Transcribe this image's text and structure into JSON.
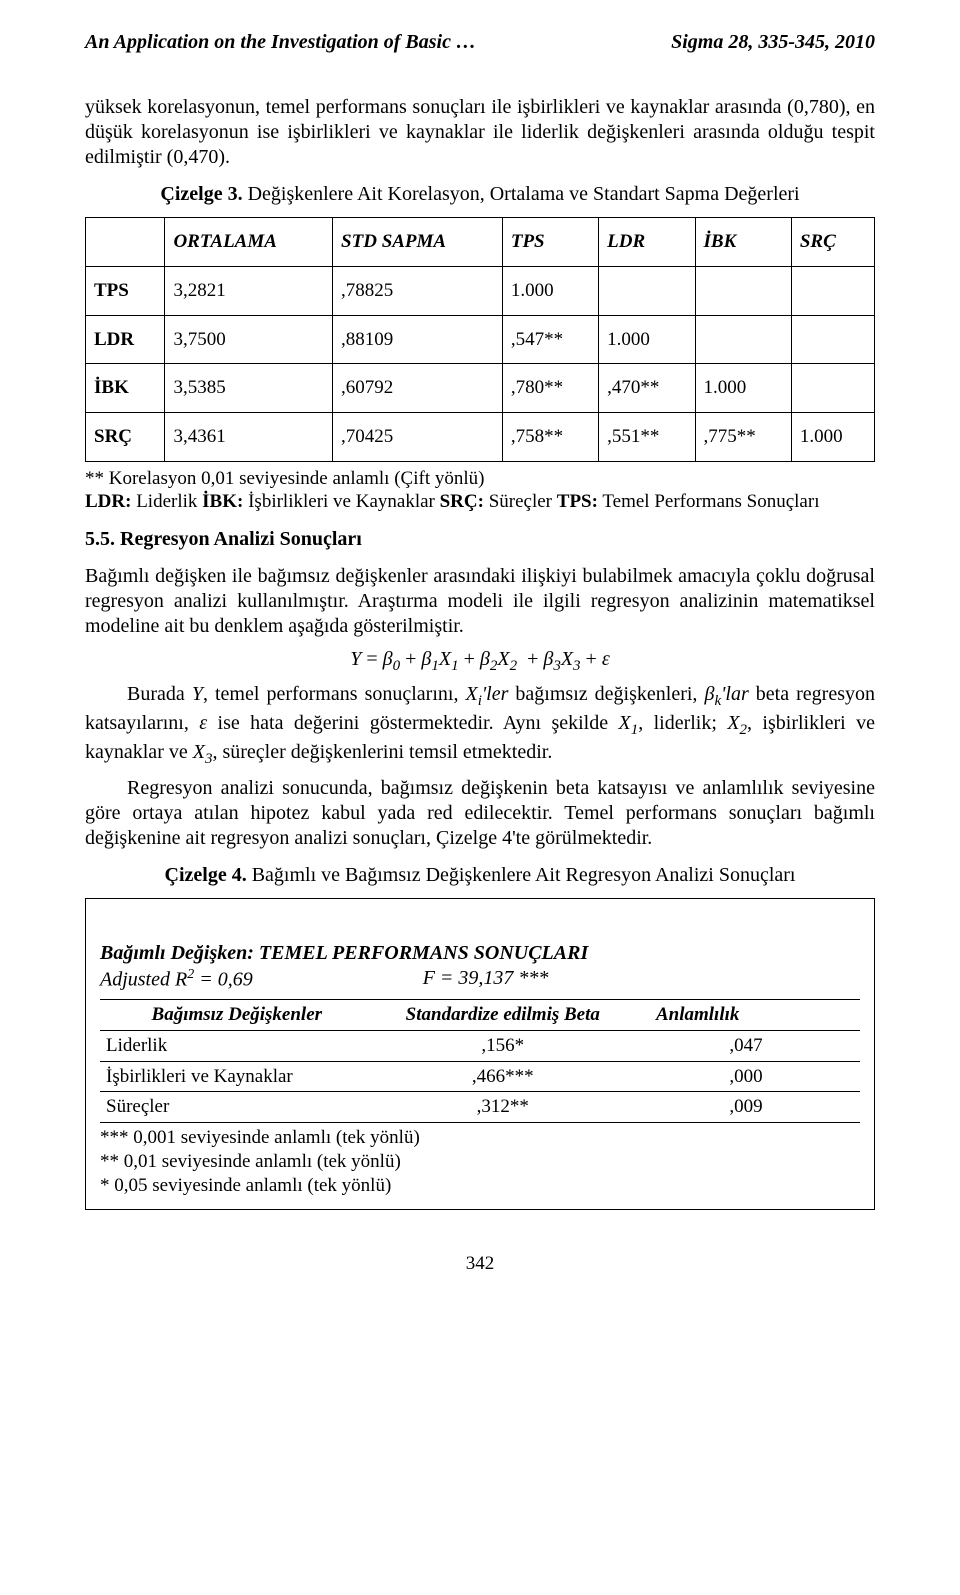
{
  "header": {
    "left": "An Application on the Investigation of Basic …",
    "right": "Sigma 28, 335-345, 2010"
  },
  "para1": "yüksek korelasyonun, temel performans sonuçları ile işbirlikleri ve kaynaklar arasında (0,780), en düşük korelasyonun ise işbirlikleri ve kaynaklar ile liderlik değişkenleri arasında olduğu tespit edilmiştir (0,470).",
  "caption3_bold": "Çizelge 3.",
  "caption3_rest": " Değişkenlere Ait Korelasyon, Ortalama ve Standart Sapma Değerleri",
  "corr_table": {
    "columns": [
      "",
      "ORTALAMA",
      "STD SAPMA",
      "TPS",
      "LDR",
      "İBK",
      "SRÇ"
    ],
    "rows": [
      [
        "TPS",
        "3,2821",
        ",78825",
        "1.000",
        "",
        "",
        ""
      ],
      [
        "LDR",
        "3,7500",
        ",88109",
        ",547**",
        "1.000",
        "",
        ""
      ],
      [
        "İBK",
        "3,5385",
        ",60792",
        ",780**",
        ",470**",
        "1.000",
        ""
      ],
      [
        "SRÇ",
        "3,4361",
        ",70425",
        ",758**",
        ",551**",
        ",775**",
        "1.000"
      ]
    ]
  },
  "note_corr_1": "** Korelasyon 0,01 seviyesinde anlamlı (Çift yönlü)",
  "note_corr_2": "LDR: Liderlik İBK: İşbirlikleri ve Kaynaklar SRÇ: Süreçler TPS: Temel Performans Sonuçları",
  "section_55": "5.5. Regresyon Analizi Sonuçları",
  "para2": "Bağımlı değişken ile bağımsız değişkenler arasındaki ilişkiyi bulabilmek amacıyla çoklu doğrusal regresyon analizi kullanılmıştır. Araştırma modeli ile ilgili regresyon analizinin matematiksel modeline ait bu denklem aşağıda gösterilmiştir.",
  "equation_parts": {
    "Y": "Y",
    "eq": " = ",
    "b0": "β",
    "s0": "0",
    "plus": " + ",
    "b1": "β",
    "s1": "1",
    "x1": "X",
    "sx1": "1",
    "b2": "β",
    "s2": "2",
    "x2": "X",
    "sx2": "2",
    "b3": "β",
    "s3": "3",
    "x3": "X",
    "sx3": "3",
    "eps": "ε"
  },
  "para3a": "Burada ",
  "para3_Y": "Y",
  "para3b": ", temel performans sonuçlarını, ",
  "para3_Xi": "X",
  "para3_Xi_sub": "i",
  "para3_ler": "'ler",
  "para3c": " bağımsız değişkenleri, ",
  "para3_bk": "β",
  "para3_bk_sub": "k",
  "para3_lar": "'lar",
  "para3d": " beta regresyon katsayılarını, ",
  "para3_eps": "ε",
  "para3e": "  ise hata değerini göstermektedir. Aynı şekilde ",
  "para3_X1": "X",
  "para3_X1s": "1",
  "para3f": ", liderlik; ",
  "para3_X2": "X",
  "para3_X2s": "2",
  "para3g": ", işbirlikleri ve kaynaklar ve ",
  "para3_X3": "X",
  "para3_X3s": "3",
  "para3h": ", süreçler değişkenlerini temsil etmektedir.",
  "para4": "Regresyon analizi sonucunda, bağımsız değişkenin beta katsayısı ve anlamlılık seviyesine göre ortaya atılan hipotez kabul yada red edilecektir. Temel performans sonuçları bağımlı değişkenine ait regresyon analizi sonuçları, Çizelge 4'te görülmektedir.",
  "caption4_bold": "Çizelge 4.",
  "caption4_rest": " Bağımlı ve Bağımsız Değişkenlere Ait Regresyon Analizi Sonuçları",
  "reg": {
    "dep_label": "Bağımlı Değişken: TEMEL PERFORMANS SONUÇLARI",
    "adj_r2_label": "Adjusted R",
    "adj_r2_sup": "2",
    "adj_r2_val": " = 0,69",
    "f_label": "F =  39,137 ***",
    "col_iv": "Bağımsız Değişkenler",
    "col_beta": "Standardize edilmiş Beta",
    "col_sig": "Anlamlılık",
    "rows": [
      [
        "Liderlik",
        ",156*",
        ",047"
      ],
      [
        "İşbirlikleri ve Kaynaklar",
        ",466***",
        ",000"
      ],
      [
        "Süreçler",
        ",312**",
        ",009"
      ]
    ],
    "sig_notes": [
      "*** 0,001 seviyesinde anlamlı (tek yönlü)",
      "**  0,01 seviyesinde anlamlı (tek yönlü)",
      "*   0,05 seviyesinde anlamlı (tek yönlü)"
    ]
  },
  "page_number": "342"
}
